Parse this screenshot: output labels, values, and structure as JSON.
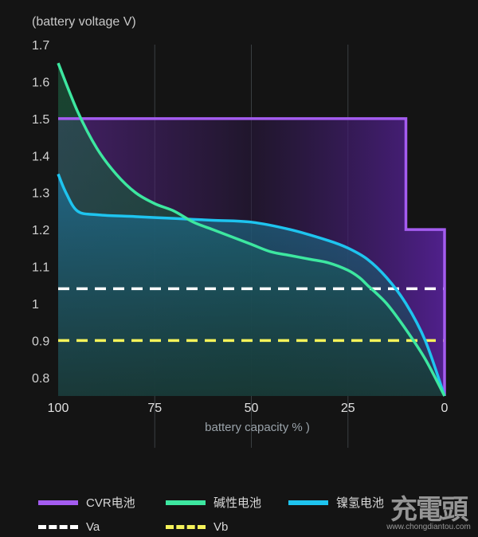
{
  "chart_data": {
    "type": "line",
    "ylabel": "(battery voltage V)",
    "xlabel": "battery capacity % )",
    "xlim": [
      100,
      0
    ],
    "ylim": [
      0.75,
      1.7
    ],
    "x_ticks": [
      100,
      75,
      50,
      25,
      0
    ],
    "y_ticks": [
      1.7,
      1.6,
      1.5,
      1.4,
      1.3,
      1.2,
      1.1,
      1,
      0.9,
      0.8
    ],
    "y_tick_labels": [
      "1.7",
      "1.6",
      "1.5",
      "1.4",
      "1.3",
      "1.2",
      "1.1",
      "1",
      "0.9",
      "0.8"
    ],
    "series": [
      {
        "name": "CVR电池",
        "color": "#a45cf0",
        "style": "step",
        "points": [
          [
            100,
            1.5
          ],
          [
            91,
            1.5
          ],
          [
            80,
            1.5
          ],
          [
            60,
            1.5
          ],
          [
            40,
            1.5
          ],
          [
            10,
            1.5
          ],
          [
            10,
            1.2
          ],
          [
            0,
            1.2
          ],
          [
            0,
            0.75
          ]
        ]
      },
      {
        "name": "碱性电池",
        "color": "#3de7a0",
        "points": [
          [
            100,
            1.65
          ],
          [
            95,
            1.52
          ],
          [
            90,
            1.42
          ],
          [
            85,
            1.35
          ],
          [
            80,
            1.3
          ],
          [
            75,
            1.27
          ],
          [
            70,
            1.25
          ],
          [
            65,
            1.22
          ],
          [
            60,
            1.2
          ],
          [
            55,
            1.18
          ],
          [
            50,
            1.16
          ],
          [
            45,
            1.14
          ],
          [
            40,
            1.13
          ],
          [
            35,
            1.12
          ],
          [
            30,
            1.11
          ],
          [
            25,
            1.09
          ],
          [
            22,
            1.07
          ],
          [
            20,
            1.05
          ],
          [
            15,
            1.0
          ],
          [
            10,
            0.93
          ],
          [
            5,
            0.85
          ],
          [
            0,
            0.75
          ]
        ]
      },
      {
        "name": "镍氢电池",
        "color": "#1ec4ef",
        "points": [
          [
            100,
            1.35
          ],
          [
            98,
            1.3
          ],
          [
            95,
            1.25
          ],
          [
            90,
            1.24
          ],
          [
            80,
            1.235
          ],
          [
            70,
            1.23
          ],
          [
            60,
            1.225
          ],
          [
            50,
            1.22
          ],
          [
            40,
            1.2
          ],
          [
            30,
            1.17
          ],
          [
            25,
            1.15
          ],
          [
            20,
            1.12
          ],
          [
            15,
            1.07
          ],
          [
            10,
            1.0
          ],
          [
            5,
            0.9
          ],
          [
            0,
            0.75
          ]
        ]
      },
      {
        "name": "Va",
        "color": "#ffffff",
        "style": "dashed",
        "points": [
          [
            100,
            1.04
          ],
          [
            0,
            1.04
          ]
        ]
      },
      {
        "name": "Vb",
        "color": "#f6f35a",
        "style": "dashed",
        "points": [
          [
            100,
            0.9
          ],
          [
            0,
            0.9
          ]
        ]
      }
    ],
    "legend": "bottom"
  },
  "watermark": {
    "brand": "充電頭",
    "url": "www.chongdiantou.com"
  }
}
